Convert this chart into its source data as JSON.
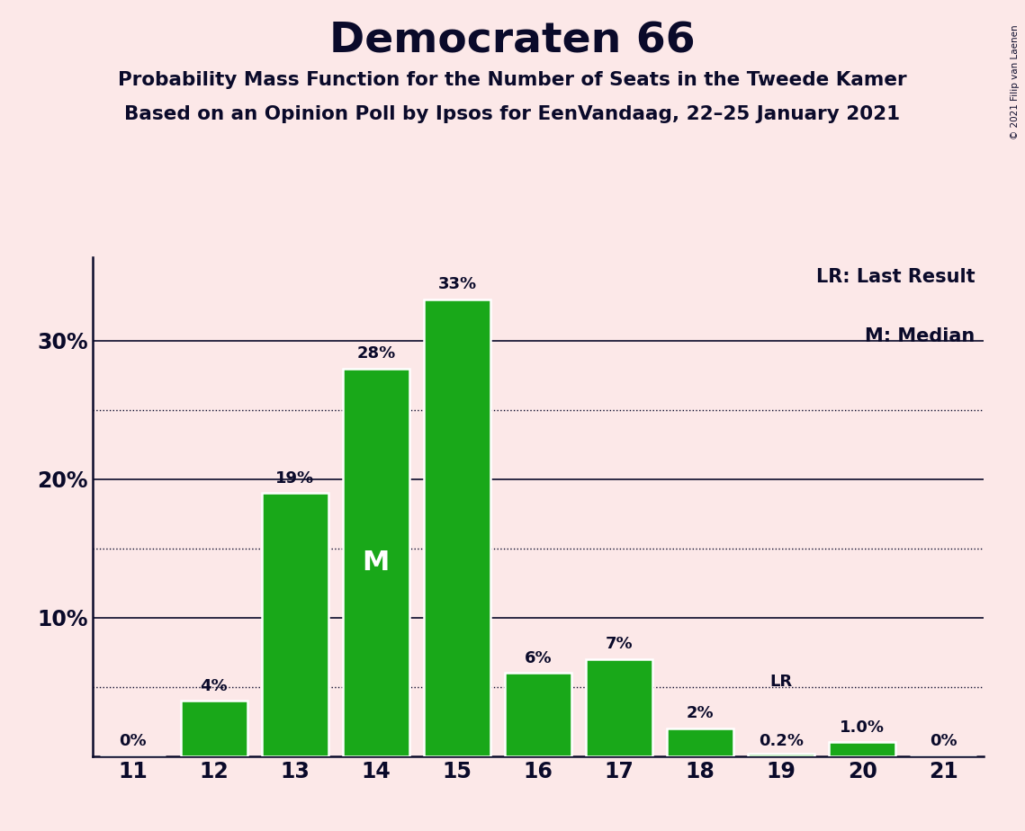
{
  "title": "Democraten 66",
  "subtitle1": "Probability Mass Function for the Number of Seats in the Tweede Kamer",
  "subtitle2": "Based on an Opinion Poll by Ipsos for EenVandaag, 22–25 January 2021",
  "copyright": "© 2021 Filip van Laenen",
  "seats": [
    11,
    12,
    13,
    14,
    15,
    16,
    17,
    18,
    19,
    20,
    21
  ],
  "probabilities": [
    0.0,
    4.0,
    19.0,
    28.0,
    33.0,
    6.0,
    7.0,
    2.0,
    0.2,
    1.0,
    0.0
  ],
  "labels": [
    "0%",
    "4%",
    "19%",
    "28%",
    "33%",
    "6%",
    "7%",
    "2%",
    "0.2%",
    "1.0%",
    "0%"
  ],
  "bar_color": "#19a819",
  "bar_edge_color": "#ffffff",
  "background_color": "#fce8e8",
  "text_color": "#0a0a2a",
  "median_seat": 14,
  "median_label": "M",
  "lr_seat": 19,
  "lr_label": "LR",
  "ylim": [
    0,
    36
  ],
  "xlim": [
    10.5,
    21.5
  ],
  "legend_lr": "LR: Last Result",
  "legend_m": "M: Median"
}
